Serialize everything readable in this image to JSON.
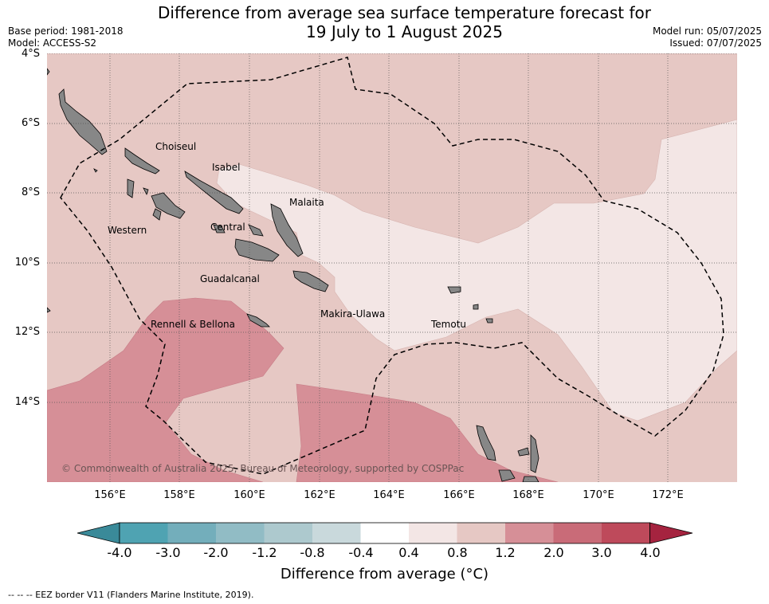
{
  "header": {
    "title_line1": "Difference from average sea surface temperature forecast for",
    "title_line2": "19 July to 1 August 2025",
    "base_period": "Base period: 1981-2018",
    "model": "Model: ACCESS-S2",
    "model_run": "Model run: 05/07/2025",
    "issued": "Issued: 07/07/2025"
  },
  "map": {
    "lat_labels": [
      "4°S",
      "6°S",
      "8°S",
      "10°S",
      "12°S",
      "14°S"
    ],
    "lon_labels": [
      "156°E",
      "158°E",
      "160°E",
      "162°E",
      "164°E",
      "166°E",
      "168°E",
      "170°E",
      "172°E"
    ],
    "provinces": [
      "Choiseul",
      "Isabel",
      "Western",
      "Malaita",
      "Central",
      "Guadalcanal",
      "Makira-Ulawa",
      "Rennell & Bellona",
      "Temotu"
    ],
    "copyright": "© Commonwealth of Australia 2025, Bureau of Meteorology, supported by COSPPac",
    "land_color": "#878787",
    "eez_style": "dashed"
  },
  "colorbar": {
    "ticks": [
      "-4.0",
      "-3.0",
      "-2.0",
      "-1.2",
      "-0.8",
      "-0.4",
      "0.4",
      "0.8",
      "1.2",
      "2.0",
      "3.0",
      "4.0"
    ],
    "colors": [
      "#3a8a99",
      "#4fa3b2",
      "#73aebb",
      "#91bcc5",
      "#adc9ce",
      "#c9d9dc",
      "#ffffff",
      "#f3e6e5",
      "#e6c8c4",
      "#d68f97",
      "#c96b78",
      "#be4a5b",
      "#a5233f"
    ],
    "label": "Difference from average (°C)"
  },
  "footnote": "--  --  -- EEZ border V11 (Flanders Marine Institute, 2019)."
}
